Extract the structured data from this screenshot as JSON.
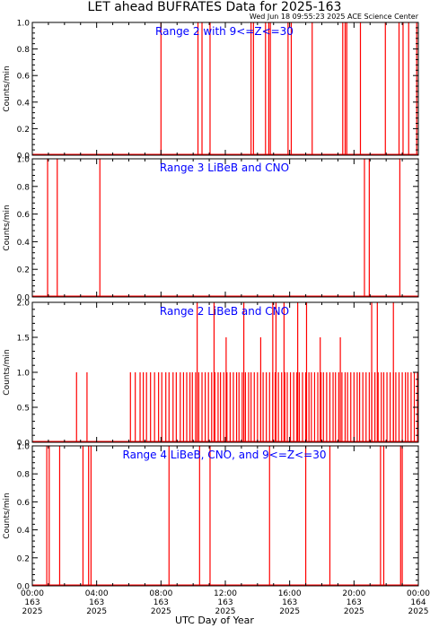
{
  "title": "LET ahead BUFRATES Data for 2025-163",
  "timestamp": "Wed Jun 18 09:55:23 2025 ACE Science Center",
  "xlabel": "UTC Day of Year",
  "colors": {
    "series": "#ff0000",
    "panel_label": "#0000ff",
    "axes": "#000000"
  },
  "chart_data": [
    {
      "type": "bar",
      "title": "Range 2 with 9<=Z<=30",
      "ylabel": "Counts/min",
      "ylim": [
        0,
        1.0
      ],
      "yticks": [
        "0.0",
        "0.2",
        "0.4",
        "0.6",
        "0.8",
        "1.0"
      ],
      "xlim_hours": [
        0,
        24
      ],
      "x_hours": [
        8.0,
        10.3,
        10.55,
        11.05,
        13.6,
        13.75,
        14.5,
        14.7,
        14.8,
        15.9,
        16.1,
        17.4,
        19.3,
        19.45,
        19.55,
        20.4,
        21.95,
        22.8,
        23.05,
        23.4,
        23.9
      ],
      "values": [
        1.0,
        1.0,
        1.0,
        1.0,
        1.0,
        1.0,
        1.0,
        1.0,
        1.0,
        1.0,
        1.0,
        1.0,
        1.0,
        1.0,
        1.0,
        1.0,
        1.0,
        1.0,
        1.0,
        1.0,
        1.0
      ]
    },
    {
      "type": "bar",
      "title": "Range 3 LiBeB and CNO",
      "ylabel": "Counts/min",
      "ylim": [
        0,
        1.0
      ],
      "yticks": [
        "0.0",
        "0.2",
        "0.4",
        "0.6",
        "0.8",
        "1.0"
      ],
      "xlim_hours": [
        0,
        24
      ],
      "x_hours": [
        0.95,
        1.55,
        4.2,
        20.65,
        20.95,
        22.85
      ],
      "values": [
        1.0,
        1.0,
        1.0,
        1.0,
        1.0,
        1.0
      ]
    },
    {
      "type": "bar",
      "title": "Range 2 LiBeB and CNO",
      "ylabel": "Counts/min",
      "ylim": [
        0,
        2.0
      ],
      "yticks": [
        "0.0",
        "0.5",
        "1.0",
        "1.5",
        "2.0"
      ],
      "xlim_hours": [
        0,
        24
      ],
      "x_hours": [
        2.75,
        3.4,
        6.1,
        6.4,
        6.7,
        6.9,
        7.1,
        7.35,
        7.6,
        7.85,
        8.05,
        8.3,
        8.5,
        8.75,
        8.95,
        9.2,
        9.4,
        9.6,
        9.8,
        9.95,
        10.15,
        10.35,
        10.55,
        10.75,
        10.95,
        11.15,
        11.35,
        11.55,
        11.7,
        11.9,
        12.1,
        12.3,
        12.5,
        12.7,
        12.85,
        13.05,
        13.25,
        13.45,
        13.6,
        13.8,
        14.0,
        14.2,
        14.35,
        14.55,
        14.75,
        14.95,
        15.1,
        15.3,
        15.5,
        15.7,
        15.85,
        16.05,
        16.25,
        16.45,
        16.6,
        16.8,
        17.0,
        17.2,
        17.35,
        17.55,
        17.75,
        17.95,
        18.1,
        18.3,
        18.5,
        18.7,
        18.85,
        19.05,
        19.25,
        19.45,
        19.6,
        19.8,
        20.0,
        20.2,
        20.35,
        20.55,
        20.75,
        20.95,
        21.1,
        21.3,
        21.5,
        21.7,
        21.85,
        22.05,
        22.25,
        22.45,
        22.6,
        22.8,
        23.0,
        23.2,
        23.35,
        23.55,
        23.75,
        23.95,
        10.25,
        11.3,
        13.15,
        14.95,
        15.15,
        15.65,
        16.5,
        17.05,
        21.1,
        21.45,
        22.45,
        12.05,
        14.2,
        17.9,
        19.15
      ],
      "values": [
        1.0,
        1.0,
        1.0,
        1.0,
        1.0,
        1.0,
        1.0,
        1.0,
        1.0,
        1.0,
        1.0,
        1.0,
        1.0,
        1.0,
        1.0,
        1.0,
        1.0,
        1.0,
        1.0,
        1.0,
        1.0,
        1.0,
        1.0,
        1.0,
        1.0,
        1.0,
        1.0,
        1.0,
        1.0,
        1.0,
        1.0,
        1.0,
        1.0,
        1.0,
        1.0,
        1.0,
        1.0,
        1.0,
        1.0,
        1.0,
        1.0,
        1.0,
        1.0,
        1.0,
        1.0,
        1.0,
        1.0,
        1.0,
        1.0,
        1.0,
        1.0,
        1.0,
        1.0,
        1.0,
        1.0,
        1.0,
        1.0,
        1.0,
        1.0,
        1.0,
        1.0,
        1.0,
        1.0,
        1.0,
        1.0,
        1.0,
        1.0,
        1.0,
        1.0,
        1.0,
        1.0,
        1.0,
        1.0,
        1.0,
        1.0,
        1.0,
        1.0,
        1.0,
        1.0,
        1.0,
        1.0,
        1.0,
        1.0,
        1.0,
        1.0,
        1.0,
        1.0,
        1.0,
        1.0,
        1.0,
        1.0,
        1.0,
        1.0,
        1.0,
        2.0,
        2.0,
        2.0,
        2.0,
        2.0,
        2.0,
        2.0,
        2.0,
        2.0,
        2.0,
        2.0,
        1.5,
        1.5,
        1.5,
        1.5
      ]
    },
    {
      "type": "bar",
      "title": "Range 4 LiBeB, CNO, and 9<=Z<=30",
      "ylabel": "Counts/min",
      "ylim": [
        0,
        1.0
      ],
      "yticks": [
        "0.0",
        "0.2",
        "0.4",
        "0.6",
        "0.8",
        "1.0"
      ],
      "xlim_hours": [
        0,
        24
      ],
      "x_hours": [
        0.9,
        1.05,
        1.7,
        3.15,
        3.5,
        3.65,
        8.5,
        10.4,
        11.05,
        14.75,
        17.0,
        18.5,
        21.65,
        21.85,
        22.9,
        23.0
      ],
      "values": [
        1.0,
        1.0,
        1.0,
        1.0,
        1.0,
        1.0,
        1.0,
        1.0,
        1.0,
        1.0,
        1.0,
        1.0,
        1.0,
        1.0,
        1.0,
        1.0
      ]
    }
  ],
  "x_ticks": [
    {
      "time": "00:00",
      "day": "163",
      "year": "2025"
    },
    {
      "time": "04:00",
      "day": "163",
      "year": "2025"
    },
    {
      "time": "08:00",
      "day": "163",
      "year": "2025"
    },
    {
      "time": "12:00",
      "day": "163",
      "year": "2025"
    },
    {
      "time": "16:00",
      "day": "163",
      "year": "2025"
    },
    {
      "time": "20:00",
      "day": "163",
      "year": "2025"
    },
    {
      "time": "00:00",
      "day": "164",
      "year": "2025"
    }
  ]
}
